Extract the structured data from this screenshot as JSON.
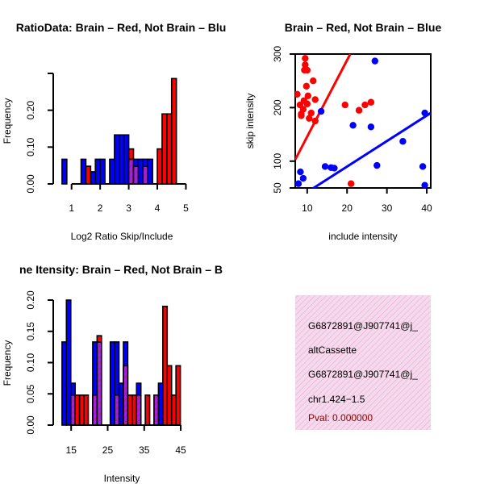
{
  "colors": {
    "brain": "#ff0000",
    "not_brain": "#0000ff",
    "overlap": "#a020f0",
    "info_bg": "#f5d9ec",
    "info_hatch": "#e7a3cd",
    "pval": "#8b0000"
  },
  "chart_data": [
    {
      "type": "bar",
      "panel": "top-left",
      "title": "RatioData: Brain – Red, Not Brain – Blu",
      "xlabel": "Log2 Ratio Skip/Include",
      "ylabel": "Frequency",
      "xlim": [
        0.5,
        5.1
      ],
      "ylim": [
        0,
        0.3
      ],
      "bin_width": 0.167,
      "xticks": [
        1,
        2,
        3,
        4,
        5
      ],
      "yticks": [
        0.0,
        0.1,
        0.2
      ],
      "yticks_labels": [
        "0.00",
        "0.10",
        "0.20"
      ],
      "series": [
        {
          "name": "Not Brain",
          "color": "blue",
          "bins": [
            0.667,
            1.333,
            1.667,
            1.833,
            2.0,
            2.333,
            2.5,
            2.667,
            2.833,
            3.0,
            3.167,
            3.333,
            3.5,
            3.667
          ],
          "values": [
            0.067,
            0.067,
            0.033,
            0.067,
            0.067,
            0.067,
            0.133,
            0.133,
            0.133,
            0.067,
            0.067,
            0.067,
            0.067,
            0.067
          ]
        },
        {
          "name": "Brain",
          "color": "red",
          "bins": [
            1.5,
            3.0,
            3.167,
            3.5,
            4.0,
            4.167,
            4.333,
            4.5
          ],
          "values": [
            0.048,
            0.095,
            0.048,
            0.048,
            0.095,
            0.19,
            0.19,
            0.286
          ]
        }
      ]
    },
    {
      "type": "scatter",
      "panel": "top-right",
      "title": "Brain – Red, Not Brain – Blue",
      "xlabel": "include intensity",
      "ylabel": "skip intensity",
      "xlim": [
        7,
        41
      ],
      "ylim": [
        50,
        300
      ],
      "xticks": [
        10,
        20,
        30,
        40
      ],
      "yticks": [
        50,
        100,
        200,
        300
      ],
      "series": [
        {
          "name": "Brain",
          "color": "red",
          "x": [
            7.5,
            8.2,
            8.5,
            9,
            9.3,
            9.5,
            9.5,
            9.8,
            10,
            10.2,
            10.5,
            11,
            11.5,
            12,
            8.5,
            9.2,
            19.5,
            23,
            24.5,
            26,
            21,
            10,
            12
          ],
          "y": [
            225,
            205,
            188,
            197,
            270,
            280,
            292,
            240,
            207,
            222,
            180,
            190,
            250,
            175,
            185,
            213,
            205,
            195,
            205,
            210,
            58,
            270,
            215
          ],
          "fit": {
            "x": [
              7,
              20.8
            ],
            "y": [
              103,
              300
            ]
          }
        },
        {
          "name": "Not Brain",
          "color": "blue",
          "x": [
            7.8,
            8.3,
            9,
            13.5,
            14.5,
            16,
            16.8,
            21.5,
            26,
            27,
            27.5,
            34,
            39,
            39.5,
            39.5
          ],
          "y": [
            58,
            80,
            68,
            193,
            90,
            88,
            87,
            167,
            164,
            287,
            92,
            137,
            90,
            190,
            55
          ],
          "fit": {
            "x": [
              7,
              41
            ],
            "y": [
              28,
              190
            ]
          }
        }
      ]
    },
    {
      "type": "bar",
      "panel": "bottom-left",
      "title": "ne Itensity: Brain – Red, Not Brain – B",
      "xlabel": "Intensity",
      "ylabel": "Frequency",
      "xlim": [
        11.2,
        47.2
      ],
      "ylim": [
        0,
        0.2
      ],
      "bin_width": 1.2,
      "xticks": [
        15,
        25,
        35,
        45
      ],
      "yticks": [
        0.0,
        0.05,
        0.1,
        0.15,
        0.2
      ],
      "yticks_labels": [
        "0.00",
        "0.05",
        "0.10",
        "0.15",
        "0.20"
      ],
      "series": [
        {
          "name": "Not Brain",
          "color": "blue",
          "bins": [
            12.5,
            13.7,
            14.9,
            16.1,
            20.9,
            22.1,
            25.7,
            26.9,
            28.1,
            29.3,
            32.9,
            34.1,
            37.7,
            38.9
          ],
          "values": [
            0.133,
            0.2,
            0.067,
            0.0,
            0.133,
            0.133,
            0.133,
            0.133,
            0.067,
            0.133,
            0.067,
            0.0,
            0.048,
            0.067
          ]
        },
        {
          "name": "Brain",
          "color": "red",
          "bins": [
            14.9,
            16.1,
            17.3,
            18.5,
            20.9,
            22.1,
            26.9,
            29.3,
            30.5,
            31.7,
            32.9,
            35.3,
            37.7,
            40.1,
            41.3,
            42.5,
            43.7
          ],
          "values": [
            0.048,
            0.048,
            0.048,
            0.048,
            0.048,
            0.143,
            0.048,
            0.095,
            0.048,
            0.048,
            0.048,
            0.048,
            0.048,
            0.19,
            0.095,
            0.048,
            0.095
          ]
        }
      ]
    }
  ],
  "info_box": {
    "lines": [
      "G6872891@J907741@j_",
      "altCassette",
      "G6872891@J907741@j_",
      "chr1.424−1.5"
    ],
    "pval": "Pval: 0.000000"
  }
}
